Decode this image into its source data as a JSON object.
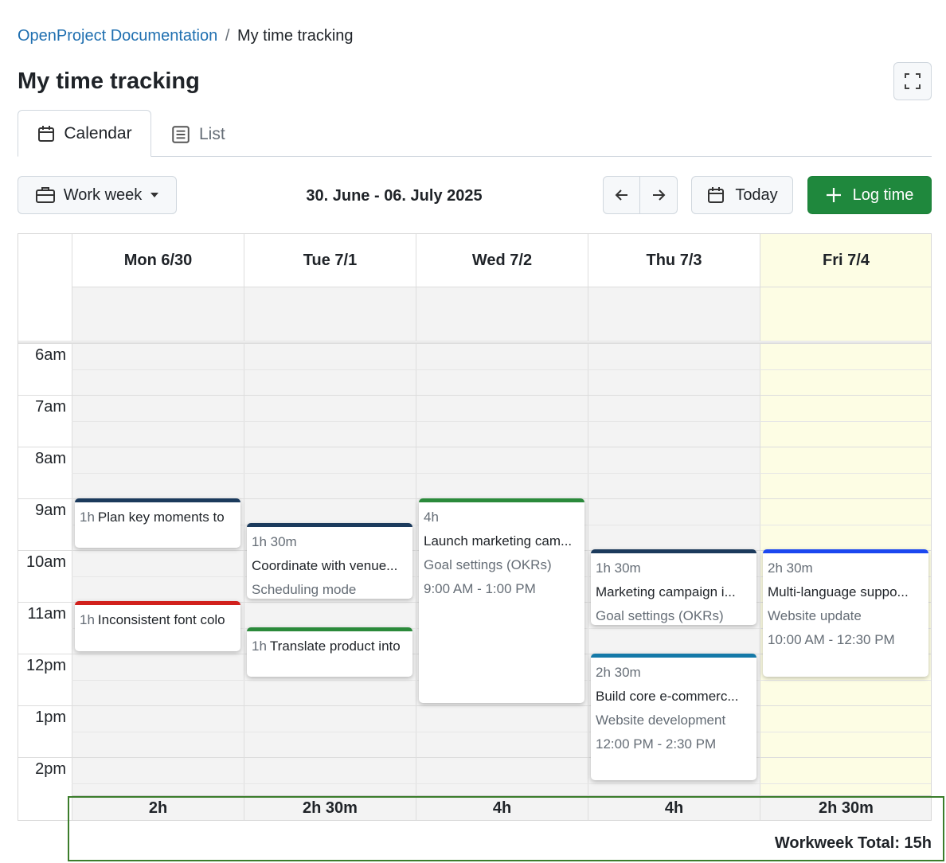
{
  "breadcrumb": {
    "project": "OpenProject Documentation",
    "separator": "/",
    "current": "My time tracking"
  },
  "header": {
    "title": "My time tracking"
  },
  "tabs": [
    "Calendar",
    "List"
  ],
  "toolbar": {
    "view": "Work week",
    "range": "30. June - 06. July 2025",
    "today": "Today",
    "log_time": "Log time"
  },
  "hours": [
    "6am",
    "7am",
    "8am",
    "9am",
    "10am",
    "11am",
    "12pm",
    "1pm",
    "2pm"
  ],
  "days": [
    {
      "label": "Mon 6/30",
      "total": "2h",
      "entries": [
        {
          "duration": "1h",
          "title": "Plan key moments to",
          "color": "#1b3a5c"
        },
        {
          "duration": "1h",
          "title": "Inconsistent font colo",
          "color": "#d1201c"
        }
      ]
    },
    {
      "label": "Tue 7/1",
      "total": "2h 30m",
      "entries": [
        {
          "duration": "1h 30m",
          "title": "Coordinate with venue...",
          "subtitle": "Scheduling mode",
          "color": "#1b3a5c"
        },
        {
          "duration": "1h",
          "title": "Translate product into",
          "color": "#2b8a3b"
        }
      ]
    },
    {
      "label": "Wed 7/2",
      "total": "4h",
      "entries": [
        {
          "duration": "4h",
          "title": "Launch marketing cam...",
          "subtitle": "Goal settings (OKRs)",
          "time": "9:00 AM - 1:00 PM",
          "color": "#2b8a3b"
        }
      ]
    },
    {
      "label": "Thu 7/3",
      "total": "4h",
      "entries": [
        {
          "duration": "1h 30m",
          "title": "Marketing campaign i...",
          "subtitle": "Goal settings (OKRs)",
          "color": "#1b3a5c"
        },
        {
          "duration": "2h 30m",
          "title": "Build core e-commerc...",
          "subtitle": "Website development",
          "time": "12:00 PM - 2:30 PM",
          "color": "#1479a8"
        }
      ]
    },
    {
      "label": "Fri 7/4",
      "total": "2h 30m",
      "today": true,
      "entries": [
        {
          "duration": "2h 30m",
          "title": "Multi-language suppo...",
          "subtitle": "Website update",
          "time": "10:00 AM - 12:30 PM",
          "color": "#1b47f0"
        }
      ]
    }
  ],
  "footer": {
    "total": "Workweek Total: 15h"
  }
}
